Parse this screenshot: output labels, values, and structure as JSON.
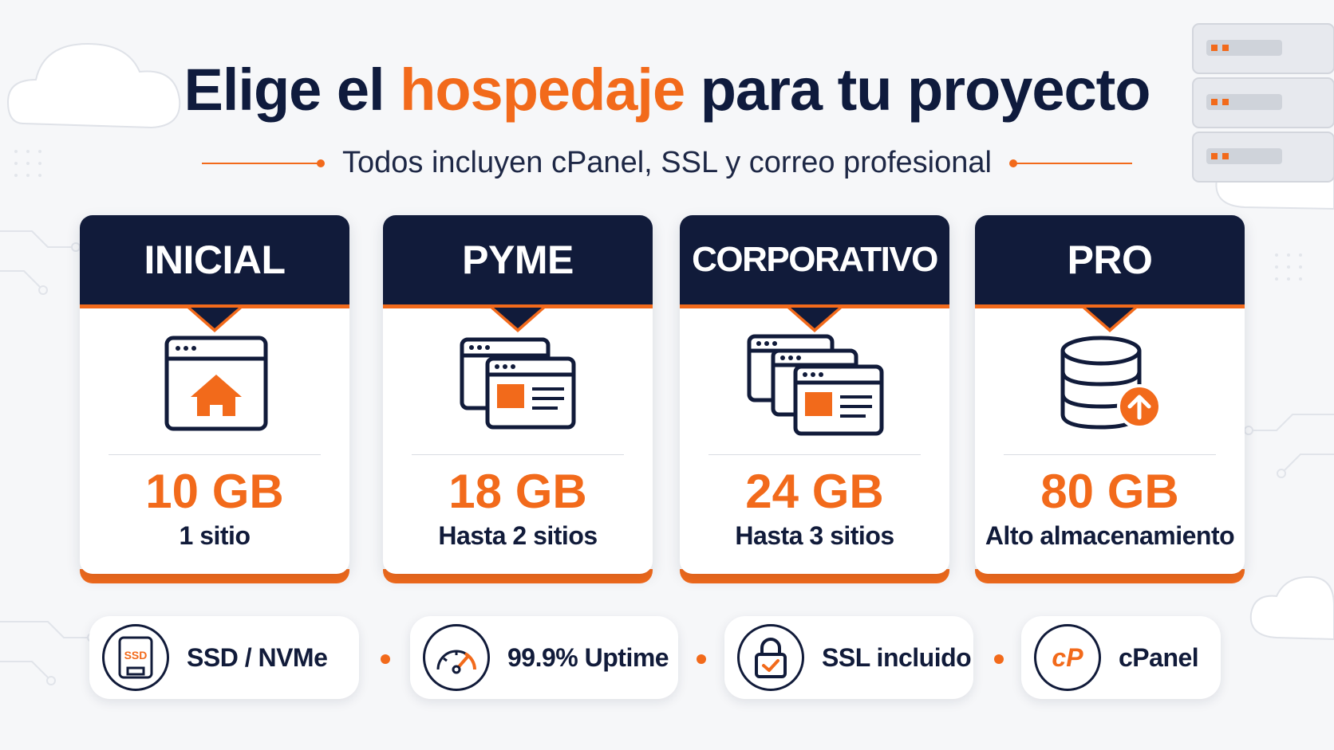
{
  "headline": {
    "part1": "Elige el ",
    "accent": "hospedaje",
    "part2": " para tu proyecto"
  },
  "subline": "Todos incluyen cPanel, SSL y correo profesional",
  "colors": {
    "navy": "#111b3a",
    "orange": "#f26a1b",
    "background": "#f6f7f9"
  },
  "plans": [
    {
      "name": "INICIAL",
      "icon": "browser-home-icon",
      "storage": "10 GB",
      "sites": "1 sitio"
    },
    {
      "name": "PYME",
      "icon": "two-browser-windows-icon",
      "storage": "18 GB",
      "sites": "Hasta 2 sitios"
    },
    {
      "name": "CORPORATIVO",
      "icon": "three-browser-windows-icon",
      "storage": "24 GB",
      "sites": "Hasta 3 sitios"
    },
    {
      "name": "PRO",
      "icon": "database-upload-icon",
      "storage": "80 GB",
      "sites": "Alto almacenamiento"
    }
  ],
  "features": [
    {
      "label": "SSD / NVMe",
      "icon": "ssd-icon",
      "icon_text": "SSD"
    },
    {
      "label": "99.9% Uptime",
      "icon": "speedometer-icon"
    },
    {
      "label": "SSL incluido",
      "icon": "padlock-check-icon"
    },
    {
      "label": "cPanel",
      "icon": "cpanel-logo-icon",
      "icon_text": "cP"
    }
  ]
}
